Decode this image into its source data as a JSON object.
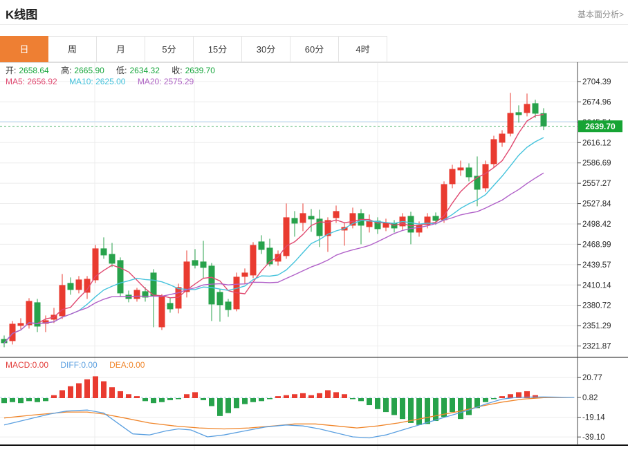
{
  "header": {
    "title": "K线图",
    "link_label": "基本面分析>"
  },
  "tabbar": {
    "items": [
      "日",
      "周",
      "月",
      "5分",
      "15分",
      "30分",
      "60分",
      "4时"
    ]
  },
  "legend": {
    "open_label": "开:",
    "open_value": "2658.64",
    "high_label": "高:",
    "high_value": "2665.90",
    "low_label": "低:",
    "low_value": "2634.32",
    "close_label": "收:",
    "close_value": "2639.70",
    "ma5": "MA5: 2656.92",
    "ma10": "MA10: 2625.00",
    "ma20": "MA20: 2575.29"
  },
  "macd_legend": {
    "macd": "MACD:0.00",
    "diff": "DIFF:0.00",
    "dea": "DEA:0.00"
  },
  "colors": {
    "up": "#e93b30",
    "down": "#27a24b",
    "ma5": "#e04970",
    "ma10": "#45c3dc",
    "ma20": "#b060c8",
    "diff": "#5a9fe0",
    "dea": "#f0862b",
    "badge": "#16a434",
    "accent": "#ee7f33",
    "grid": "#ececec",
    "axis": "#444444",
    "price_line": "#4db36a",
    "ref_line": "#bcd9f2",
    "zero_dash": "#a9c9e8"
  },
  "chart_data": {
    "type": "candlestick+macd",
    "main": {
      "title": "K线图 (日)",
      "y_axis_labels": [
        "2704.39",
        "2674.96",
        "2645.54",
        "2616.12",
        "2586.69",
        "2557.27",
        "2527.84",
        "2498.42",
        "2468.99",
        "2439.57",
        "2410.14",
        "2380.72",
        "2351.29",
        "2321.87"
      ],
      "current_price": 2639.7,
      "current_price_label": "2639.70",
      "ref_line_price": 2646.4,
      "vgrid_x": [
        137,
        281,
        546
      ],
      "ma_periods": [
        5,
        10,
        20
      ],
      "candles_ohlc": [
        [
          2332,
          2337,
          2320,
          2326
        ],
        [
          2329,
          2358,
          2324,
          2354
        ],
        [
          2351,
          2362,
          2346,
          2355
        ],
        [
          2352,
          2391,
          2347,
          2387
        ],
        [
          2385,
          2390,
          2342,
          2350
        ],
        [
          2354,
          2366,
          2342,
          2359
        ],
        [
          2360,
          2377,
          2355,
          2367
        ],
        [
          2365,
          2426,
          2361,
          2410
        ],
        [
          2413,
          2421,
          2396,
          2403
        ],
        [
          2403,
          2423,
          2398,
          2418
        ],
        [
          2399,
          2423,
          2390,
          2419
        ],
        [
          2417,
          2468,
          2413,
          2463
        ],
        [
          2463,
          2479,
          2448,
          2453
        ],
        [
          2455,
          2471,
          2436,
          2441
        ],
        [
          2446,
          2450,
          2393,
          2398
        ],
        [
          2396,
          2402,
          2385,
          2390
        ],
        [
          2390,
          2406,
          2386,
          2403
        ],
        [
          2401,
          2407,
          2386,
          2392
        ],
        [
          2428,
          2433,
          2349,
          2394
        ],
        [
          2349,
          2397,
          2345,
          2394
        ],
        [
          2384,
          2391,
          2370,
          2375
        ],
        [
          2376,
          2412,
          2369,
          2407
        ],
        [
          2400,
          2460,
          2392,
          2444
        ],
        [
          2446,
          2462,
          2434,
          2438
        ],
        [
          2444,
          2474,
          2420,
          2435
        ],
        [
          2438,
          2442,
          2358,
          2382
        ],
        [
          2400,
          2404,
          2357,
          2381
        ],
        [
          2386,
          2390,
          2364,
          2374
        ],
        [
          2375,
          2428,
          2372,
          2422
        ],
        [
          2422,
          2434,
          2411,
          2428
        ],
        [
          2424,
          2472,
          2420,
          2468
        ],
        [
          2473,
          2482,
          2455,
          2461
        ],
        [
          2464,
          2477,
          2437,
          2440
        ],
        [
          2444,
          2460,
          2438,
          2455
        ],
        [
          2452,
          2528,
          2448,
          2508
        ],
        [
          2507,
          2517,
          2480,
          2499
        ],
        [
          2500,
          2528,
          2488,
          2514
        ],
        [
          2510,
          2520,
          2487,
          2505
        ],
        [
          2506,
          2519,
          2465,
          2481
        ],
        [
          2481,
          2508,
          2458,
          2504
        ],
        [
          2507,
          2525,
          2500,
          2517
        ],
        [
          2489,
          2500,
          2467,
          2494
        ],
        [
          2496,
          2522,
          2492,
          2514
        ],
        [
          2514,
          2520,
          2469,
          2496
        ],
        [
          2494,
          2512,
          2486,
          2503
        ],
        [
          2503,
          2508,
          2484,
          2491
        ],
        [
          2493,
          2506,
          2488,
          2500
        ],
        [
          2500,
          2504,
          2486,
          2492
        ],
        [
          2495,
          2514,
          2490,
          2509
        ],
        [
          2510,
          2516,
          2469,
          2486
        ],
        [
          2486,
          2502,
          2480,
          2497
        ],
        [
          2497,
          2514,
          2492,
          2509
        ],
        [
          2510,
          2515,
          2497,
          2503
        ],
        [
          2504,
          2560,
          2500,
          2556
        ],
        [
          2556,
          2584,
          2550,
          2578
        ],
        [
          2576,
          2590,
          2568,
          2580
        ],
        [
          2580,
          2586,
          2560,
          2566
        ],
        [
          2568,
          2596,
          2524,
          2548
        ],
        [
          2550,
          2590,
          2545,
          2585
        ],
        [
          2585,
          2626,
          2580,
          2621
        ],
        [
          2616,
          2634,
          2610,
          2629
        ],
        [
          2629,
          2688,
          2625,
          2659
        ],
        [
          2660,
          2670,
          2645,
          2656
        ],
        [
          2659,
          2687,
          2654,
          2672
        ],
        [
          2673,
          2678,
          2652,
          2658
        ],
        [
          2658.64,
          2665.9,
          2634.32,
          2639.7
        ]
      ]
    },
    "macd": {
      "y_axis_labels": [
        "20.77",
        "0.82",
        "-19.14",
        "-39.10"
      ],
      "histogram": [
        -5,
        -4,
        -5,
        -3,
        -4,
        -3,
        3,
        8,
        12,
        15,
        19,
        22,
        17,
        11,
        7,
        4,
        2,
        -3,
        -5,
        -4,
        -2,
        -1,
        4,
        6,
        -2,
        -8,
        -18,
        -15,
        -10,
        -6,
        -4,
        -3,
        -1,
        2,
        3,
        4,
        5,
        3,
        5,
        8,
        6,
        4,
        -1,
        -3,
        -7,
        -11,
        -14,
        -17,
        -21,
        -25,
        -27,
        -26,
        -23,
        -19,
        -14,
        -21,
        -17,
        -10,
        -4,
        -1,
        2,
        4,
        6,
        7,
        3,
        1
      ],
      "diff_line": [
        [
          6,
          -27
        ],
        [
          24,
          -24
        ],
        [
          48,
          -20
        ],
        [
          72,
          -16
        ],
        [
          96,
          -13
        ],
        [
          126,
          -12
        ],
        [
          150,
          -15
        ],
        [
          174,
          -27
        ],
        [
          192,
          -36
        ],
        [
          216,
          -37
        ],
        [
          240,
          -33
        ],
        [
          258,
          -31
        ],
        [
          276,
          -32
        ],
        [
          300,
          -39
        ],
        [
          324,
          -37
        ],
        [
          354,
          -33
        ],
        [
          384,
          -29
        ],
        [
          414,
          -27
        ],
        [
          438,
          -28
        ],
        [
          462,
          -31
        ],
        [
          486,
          -35
        ],
        [
          510,
          -39
        ],
        [
          534,
          -40
        ],
        [
          558,
          -37
        ],
        [
          582,
          -32
        ],
        [
          606,
          -27
        ],
        [
          630,
          -22
        ],
        [
          654,
          -17
        ],
        [
          678,
          -12
        ],
        [
          702,
          -6
        ],
        [
          726,
          -1
        ],
        [
          750,
          1
        ],
        [
          786,
          1.2
        ],
        [
          830,
          0.8
        ]
      ],
      "dea_line": [
        [
          6,
          -20
        ],
        [
          48,
          -17
        ],
        [
          96,
          -14
        ],
        [
          126,
          -14
        ],
        [
          150,
          -16
        ],
        [
          180,
          -20
        ],
        [
          216,
          -25
        ],
        [
          252,
          -28
        ],
        [
          288,
          -30
        ],
        [
          324,
          -31
        ],
        [
          360,
          -30
        ],
        [
          396,
          -28
        ],
        [
          426,
          -26
        ],
        [
          456,
          -26
        ],
        [
          486,
          -28
        ],
        [
          516,
          -30
        ],
        [
          546,
          -28
        ],
        [
          576,
          -25
        ],
        [
          606,
          -21
        ],
        [
          636,
          -17
        ],
        [
          666,
          -13
        ],
        [
          696,
          -8
        ],
        [
          726,
          -4
        ],
        [
          756,
          -1
        ],
        [
          786,
          0.5
        ],
        [
          830,
          0.8
        ]
      ]
    }
  }
}
